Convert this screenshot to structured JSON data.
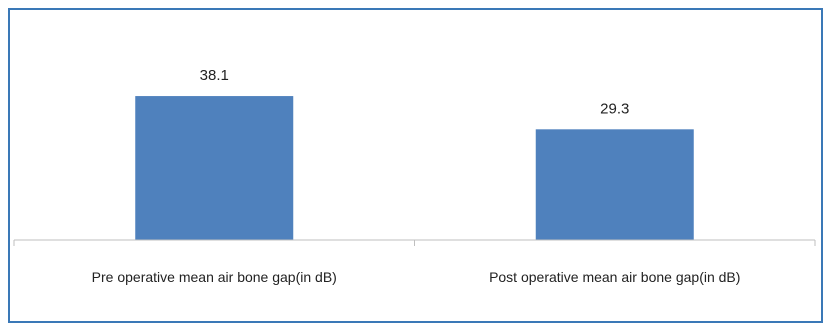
{
  "chart_data": {
    "type": "bar",
    "categories": [
      "Pre operative mean air bone gap(in dB)",
      "Post operative mean air bone gap(in dB)"
    ],
    "values": [
      38.1,
      29.3
    ],
    "data_labels": [
      "38.1",
      "29.3"
    ],
    "ylim": [
      0,
      45
    ],
    "grid": false,
    "legend": "none",
    "bar_color": "#4f81bd",
    "axis_color": "#bfbfbf"
  }
}
